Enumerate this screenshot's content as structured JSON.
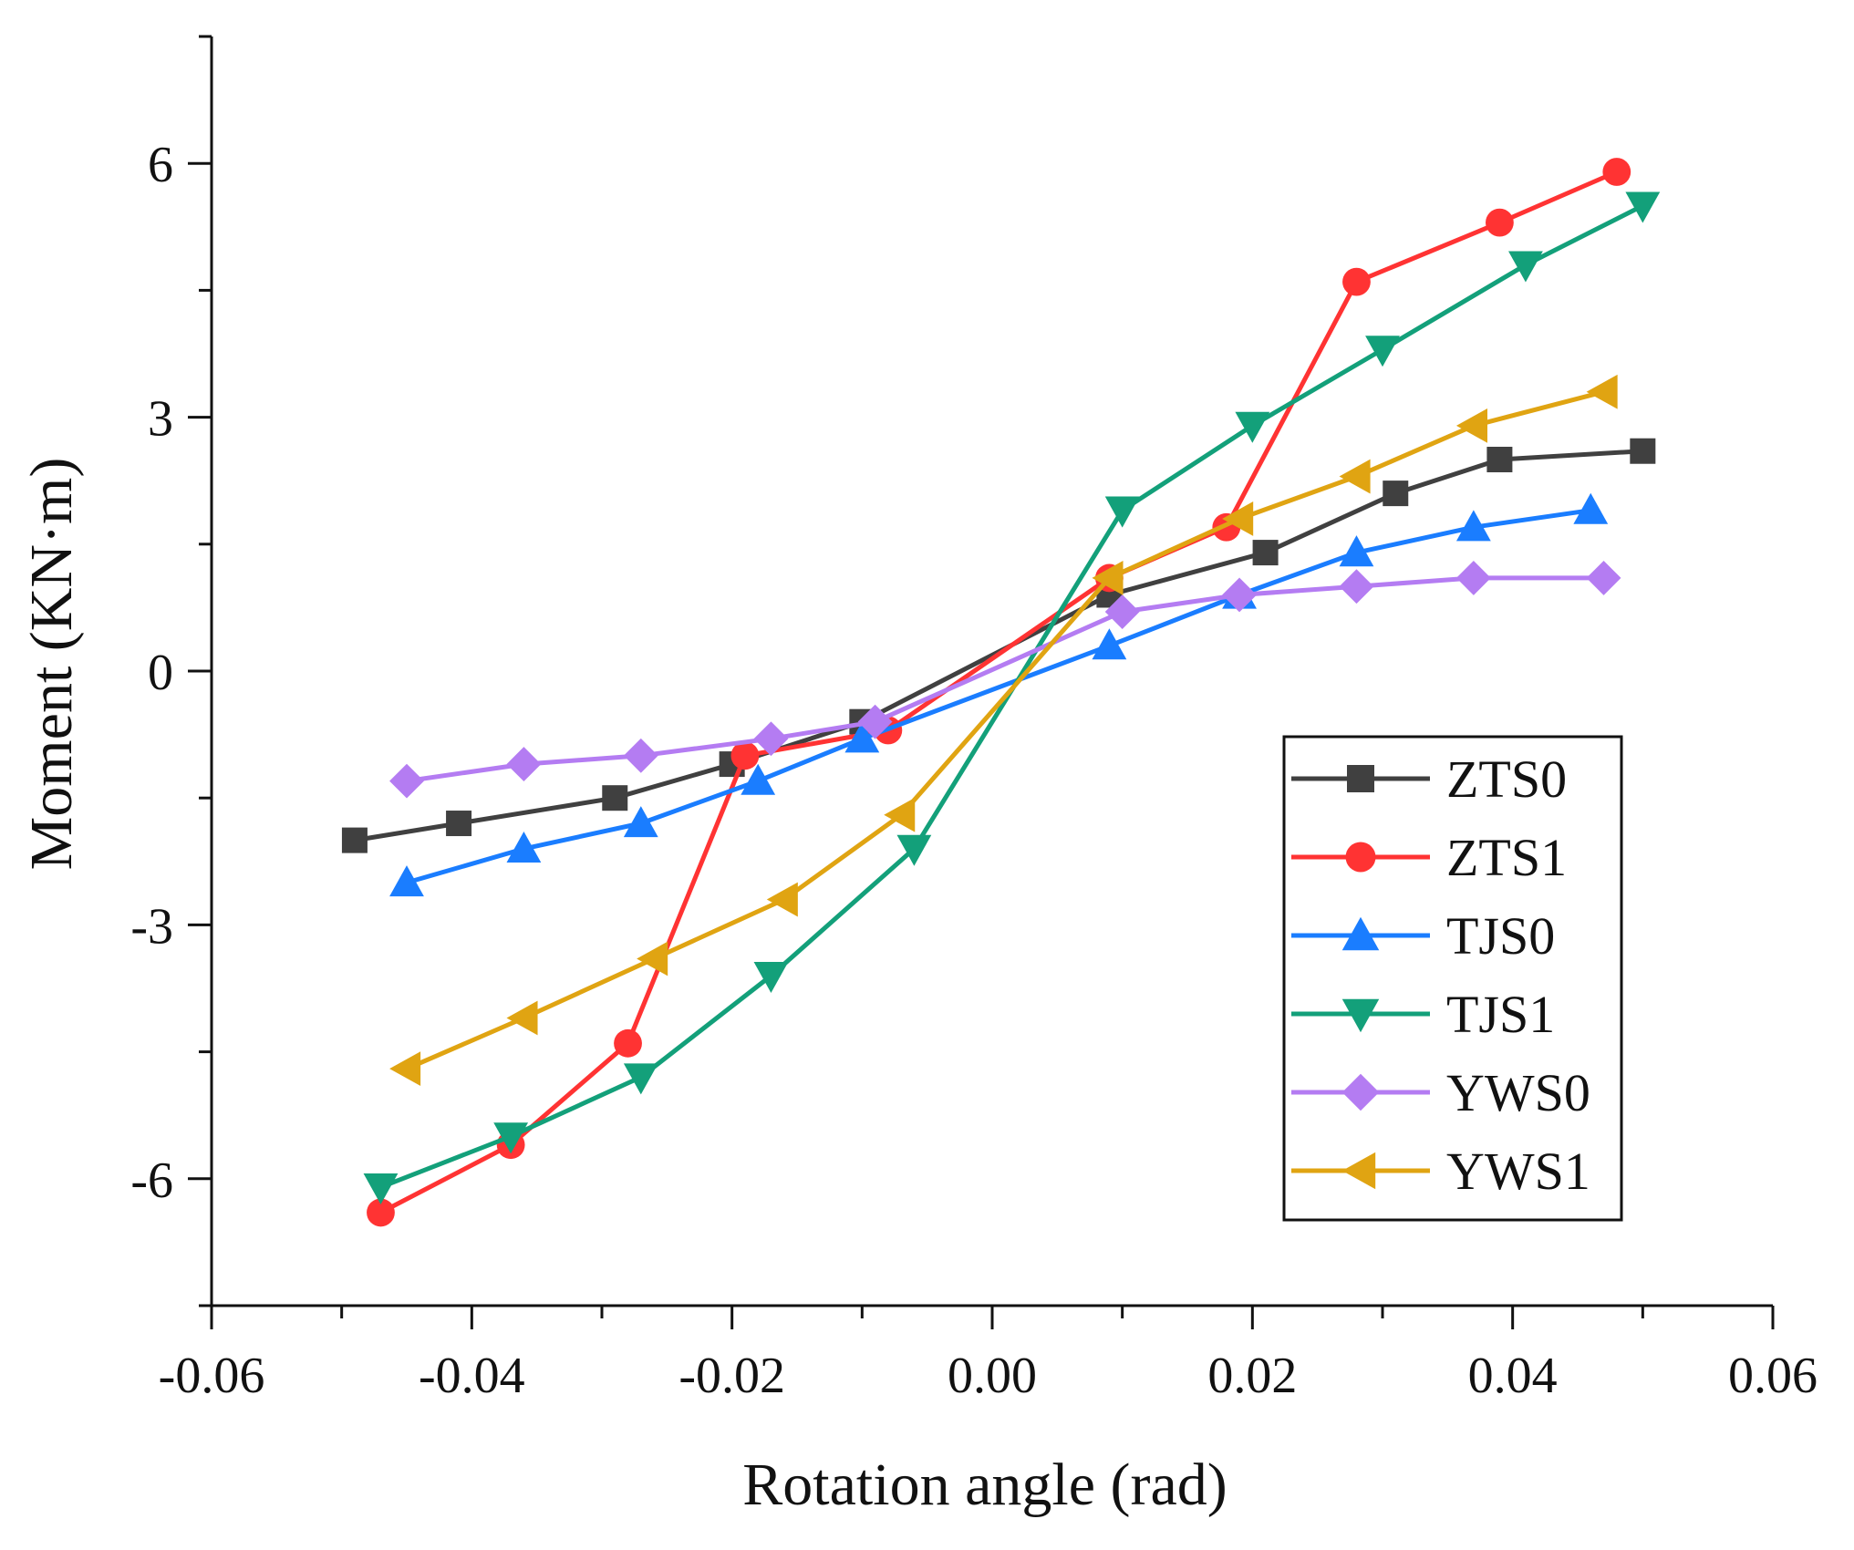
{
  "chart_data": {
    "type": "line",
    "title": "",
    "xlabel": "Rotation angle (rad)",
    "ylabel": "Moment (KN·m)",
    "xlim": [
      -0.06,
      0.06
    ],
    "ylim": [
      -7.5,
      7.5
    ],
    "xticks": [
      -0.06,
      -0.04,
      -0.02,
      0.0,
      0.02,
      0.04,
      0.06
    ],
    "xtick_labels": [
      "-0.06",
      "-0.04",
      "-0.02",
      "0.00",
      "0.02",
      "0.04",
      "0.06"
    ],
    "yticks": [
      -6,
      -3,
      0,
      3,
      6
    ],
    "ytick_labels": [
      "-6",
      "-3",
      "0",
      "3",
      "6"
    ],
    "grid": false,
    "legend_position": "lower-right",
    "series": [
      {
        "name": "ZTS0",
        "color": "#404040",
        "marker": "square",
        "x": [
          -0.049,
          -0.041,
          -0.029,
          -0.02,
          -0.01,
          0.009,
          0.021,
          0.031,
          0.039,
          0.05
        ],
        "y": [
          -2.0,
          -1.8,
          -1.5,
          -1.1,
          -0.6,
          0.9,
          1.4,
          2.1,
          2.5,
          2.6
        ]
      },
      {
        "name": "ZTS1",
        "color": "#ff3333",
        "marker": "circle",
        "x": [
          -0.047,
          -0.037,
          -0.028,
          -0.019,
          -0.008,
          0.009,
          0.018,
          0.028,
          0.039,
          0.048
        ],
        "y": [
          -6.4,
          -5.6,
          -4.4,
          -1.0,
          -0.7,
          1.1,
          1.7,
          4.6,
          5.3,
          5.9
        ]
      },
      {
        "name": "TJS0",
        "color": "#1a7dff",
        "marker": "triangle-up",
        "x": [
          -0.045,
          -0.036,
          -0.027,
          -0.018,
          -0.01,
          0.009,
          0.019,
          0.028,
          0.037,
          0.046
        ],
        "y": [
          -2.5,
          -2.1,
          -1.8,
          -1.3,
          -0.8,
          0.3,
          0.9,
          1.4,
          1.7,
          1.9
        ]
      },
      {
        "name": "TJS1",
        "color": "#13a07a",
        "marker": "triangle-down",
        "x": [
          -0.047,
          -0.037,
          -0.027,
          -0.017,
          -0.006,
          0.01,
          0.02,
          0.03,
          0.041,
          0.05
        ],
        "y": [
          -6.1,
          -5.5,
          -4.8,
          -3.6,
          -2.1,
          1.9,
          2.9,
          3.8,
          4.8,
          5.5
        ]
      },
      {
        "name": "YWS0",
        "color": "#b47cf2",
        "marker": "diamond",
        "x": [
          -0.045,
          -0.036,
          -0.027,
          -0.017,
          -0.009,
          0.01,
          0.019,
          0.028,
          0.037,
          0.047
        ],
        "y": [
          -1.3,
          -1.1,
          -1.0,
          -0.8,
          -0.6,
          0.7,
          0.9,
          1.0,
          1.1,
          1.1
        ]
      },
      {
        "name": "YWS1",
        "color": "#e0a412",
        "marker": "triangle-left",
        "x": [
          -0.045,
          -0.036,
          -0.026,
          -0.016,
          -0.007,
          0.009,
          0.019,
          0.028,
          0.037,
          0.047
        ],
        "y": [
          -4.7,
          -4.1,
          -3.4,
          -2.7,
          -1.7,
          1.1,
          1.8,
          2.3,
          2.9,
          3.3
        ]
      }
    ]
  }
}
